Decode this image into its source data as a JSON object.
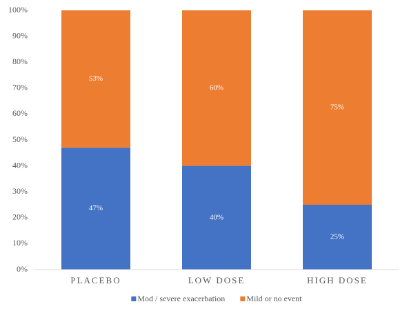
{
  "chart_data": {
    "type": "stacked_bar",
    "categories": [
      "PLACEBO",
      "LOW DOSE",
      "HIGH DOSE"
    ],
    "series": [
      {
        "name": "Mod / severe exacerbation",
        "color": "#4472c4",
        "values": [
          47,
          40,
          25
        ],
        "value_labels": [
          "47%",
          "40%",
          "25%"
        ]
      },
      {
        "name": "Mild or no event",
        "color": "#ed7d31",
        "values": [
          53,
          60,
          75
        ],
        "value_labels": [
          "53%",
          "60%",
          "75%"
        ]
      }
    ],
    "ylim": [
      0,
      100
    ],
    "yticks": [
      {
        "value": 0,
        "label": "0%"
      },
      {
        "value": 10,
        "label": "10%"
      },
      {
        "value": 20,
        "label": "20%"
      },
      {
        "value": 30,
        "label": "30%"
      },
      {
        "value": 40,
        "label": "40%"
      },
      {
        "value": 50,
        "label": "50%"
      },
      {
        "value": 60,
        "label": "60%"
      },
      {
        "value": 70,
        "label": "70%"
      },
      {
        "value": 80,
        "label": "80%"
      },
      {
        "value": 90,
        "label": "90%"
      },
      {
        "value": 100,
        "label": "100%"
      }
    ],
    "grid": false,
    "legend": "bottom"
  }
}
